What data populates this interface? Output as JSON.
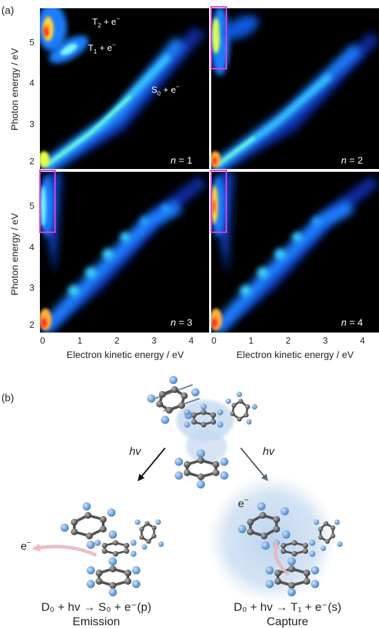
{
  "panel_a_label": "(a)",
  "panel_b_label": "(b)",
  "y_axis_label": "Photon energy / eV",
  "x_axis_label": "Electron kinetic energy / eV",
  "y_ticks": [
    "2",
    "3",
    "4",
    "5"
  ],
  "x_ticks": [
    "0",
    "1",
    "2",
    "3",
    "4"
  ],
  "maps": [
    {
      "n_label": "n",
      "n_value": "= 1"
    },
    {
      "n_label": "n",
      "n_value": "= 2"
    },
    {
      "n_label": "n",
      "n_value": "= 3"
    },
    {
      "n_label": "n",
      "n_value": "= 4"
    }
  ],
  "annotations": {
    "t2": {
      "state": "T",
      "sub": "2",
      "rest": " + e",
      "sup": "−"
    },
    "t1": {
      "state": "T",
      "sub": "1",
      "rest": " + e",
      "sup": "−"
    },
    "s0": {
      "state": "S",
      "sub": "0",
      "rest": " + e",
      "sup": "−"
    }
  },
  "scheme": {
    "hv": "hv",
    "electron_label": "e",
    "electron_sup": "−",
    "emission_equation": "D₀ + hv → S₀ + e⁻(p)",
    "emission_label": "Emission",
    "capture_equation": "D₀ + hv → T₁ + e⁻(s)",
    "capture_label": "Capture"
  },
  "colors": {
    "map_background": "#000000",
    "highlight_box": "#e23ce0",
    "cloud": "#a9c6e6",
    "arrow_left": "#111111",
    "arrow_right": "#4d5b66"
  }
}
